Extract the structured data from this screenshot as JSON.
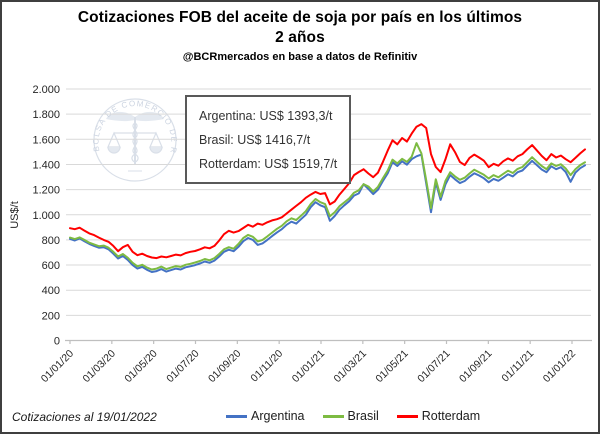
{
  "header": {
    "title_line1": "Cotizaciones FOB del aceite de soja por país en los últimos",
    "title_line2": "2 años",
    "subtitle": "@BCRmercados en base a datos de Refinitiv"
  },
  "annotation": {
    "lines": [
      "Argentina: US$ 1393,3/t",
      "Brasil: US$ 1416,7/t",
      "Rotterdam: US$ 1519,7/t"
    ]
  },
  "watermark": {
    "seal_text": "BOLSA DE COMERCIO DE ROSARIO",
    "symbol": "caduceus-with-scales"
  },
  "footer": {
    "note": "Cotizaciones al 19/01/2022"
  },
  "colors": {
    "argentina": "#4472C4",
    "brasil": "#7DBB42",
    "rotterdam": "#FF0000",
    "gridline": "#D9D9D9",
    "axis": "#BFBFBF",
    "tick_text": "#262626"
  },
  "chart_data": {
    "type": "line",
    "title": "Cotizaciones FOB del aceite de soja por país en los últimos 2 años",
    "subtitle": "@BCRmercados en base a datos de Refinitiv",
    "ylabel": "US$/t",
    "xlabel": "",
    "ylim": [
      0,
      2000
    ],
    "grid": "horizontal",
    "legend_position": "bottom",
    "y_ticks": [
      "2.000",
      "1.800",
      "1.600",
      "1.400",
      "1.200",
      "1.000",
      "800",
      "600",
      "400",
      "200",
      "0"
    ],
    "y_tick_values": [
      2000,
      1800,
      1600,
      1400,
      1200,
      1000,
      800,
      600,
      400,
      200,
      0
    ],
    "x_ticks": [
      "01/01/20",
      "01/03/20",
      "01/05/20",
      "01/07/20",
      "01/09/20",
      "01/11/20",
      "01/01/21",
      "01/03/21",
      "01/05/21",
      "01/07/21",
      "01/09/21",
      "01/11/21",
      "01/01/22"
    ],
    "x_start": "01/01/2020",
    "x_end": "19/01/2022",
    "sampling": "weekly (values estimated from plot, US$/t)",
    "series": [
      {
        "name": "Argentina",
        "color": "#4472C4",
        "last_value": 1393.3,
        "values": [
          808,
          795,
          812,
          790,
          768,
          752,
          738,
          742,
          725,
          690,
          652,
          672,
          640,
          600,
          572,
          585,
          562,
          545,
          552,
          568,
          548,
          560,
          572,
          565,
          582,
          590,
          600,
          612,
          628,
          618,
          635,
          668,
          705,
          722,
          710,
          745,
          790,
          815,
          800,
          760,
          772,
          800,
          830,
          860,
          885,
          920,
          945,
          930,
          965,
          1000,
          1060,
          1100,
          1075,
          1060,
          952,
          990,
          1040,
          1075,
          1108,
          1152,
          1170,
          1243,
          1205,
          1164,
          1200,
          1268,
          1330,
          1418,
          1388,
          1425,
          1398,
          1442,
          1465,
          1478,
          1250,
          1020,
          1258,
          1118,
          1240,
          1315,
          1282,
          1252,
          1268,
          1302,
          1330,
          1312,
          1290,
          1258,
          1285,
          1270,
          1295,
          1322,
          1305,
          1338,
          1352,
          1390,
          1428,
          1395,
          1360,
          1338,
          1385,
          1362,
          1378,
          1340,
          1262,
          1335,
          1370,
          1393
        ]
      },
      {
        "name": "Brasil",
        "color": "#7DBB42",
        "last_value": 1416.7,
        "values": [
          818,
          806,
          820,
          800,
          778,
          764,
          750,
          755,
          738,
          705,
          668,
          688,
          658,
          618,
          590,
          602,
          580,
          565,
          572,
          588,
          568,
          580,
          592,
          585,
          602,
          610,
          620,
          632,
          648,
          638,
          655,
          688,
          725,
          742,
          730,
          768,
          815,
          840,
          825,
          788,
          800,
          828,
          858,
          888,
          912,
          948,
          972,
          958,
          992,
          1028,
          1085,
          1125,
          1100,
          1085,
          988,
          1020,
          1068,
          1098,
          1130,
          1175,
          1195,
          1243,
          1225,
          1185,
          1222,
          1290,
          1352,
          1438,
          1408,
          1445,
          1420,
          1462,
          1570,
          1488,
          1275,
          1052,
          1282,
          1142,
          1268,
          1338,
          1305,
          1278,
          1295,
          1328,
          1358,
          1338,
          1318,
          1288,
          1315,
          1298,
          1325,
          1350,
          1332,
          1365,
          1380,
          1418,
          1458,
          1422,
          1388,
          1362,
          1408,
          1388,
          1402,
          1368,
          1315,
          1362,
          1395,
          1417
        ]
      },
      {
        "name": "Rotterdam",
        "color": "#FF0000",
        "last_value": 1519.7,
        "values": [
          893,
          885,
          897,
          874,
          852,
          838,
          818,
          800,
          785,
          752,
          710,
          742,
          760,
          705,
          678,
          690,
          672,
          660,
          655,
          668,
          662,
          672,
          683,
          677,
          695,
          705,
          712,
          725,
          741,
          733,
          752,
          795,
          845,
          872,
          858,
          870,
          895,
          920,
          905,
          930,
          920,
          940,
          955,
          965,
          980,
          1010,
          1040,
          1070,
          1100,
          1135,
          1160,
          1182,
          1165,
          1172,
          1082,
          1105,
          1160,
          1205,
          1252,
          1315,
          1340,
          1362,
          1328,
          1299,
          1335,
          1420,
          1510,
          1592,
          1560,
          1610,
          1582,
          1645,
          1700,
          1721,
          1690,
          1482,
          1380,
          1339,
          1440,
          1560,
          1498,
          1420,
          1395,
          1452,
          1478,
          1455,
          1430,
          1378,
          1405,
          1390,
          1425,
          1448,
          1430,
          1465,
          1482,
          1520,
          1554,
          1512,
          1468,
          1434,
          1482,
          1455,
          1470,
          1442,
          1418,
          1452,
          1488,
          1520
        ]
      }
    ]
  },
  "legend": [
    {
      "label": "Argentina",
      "color": "#4472C4"
    },
    {
      "label": "Brasil",
      "color": "#7DBB42"
    },
    {
      "label": "Rotterdam",
      "color": "#FF0000"
    }
  ]
}
